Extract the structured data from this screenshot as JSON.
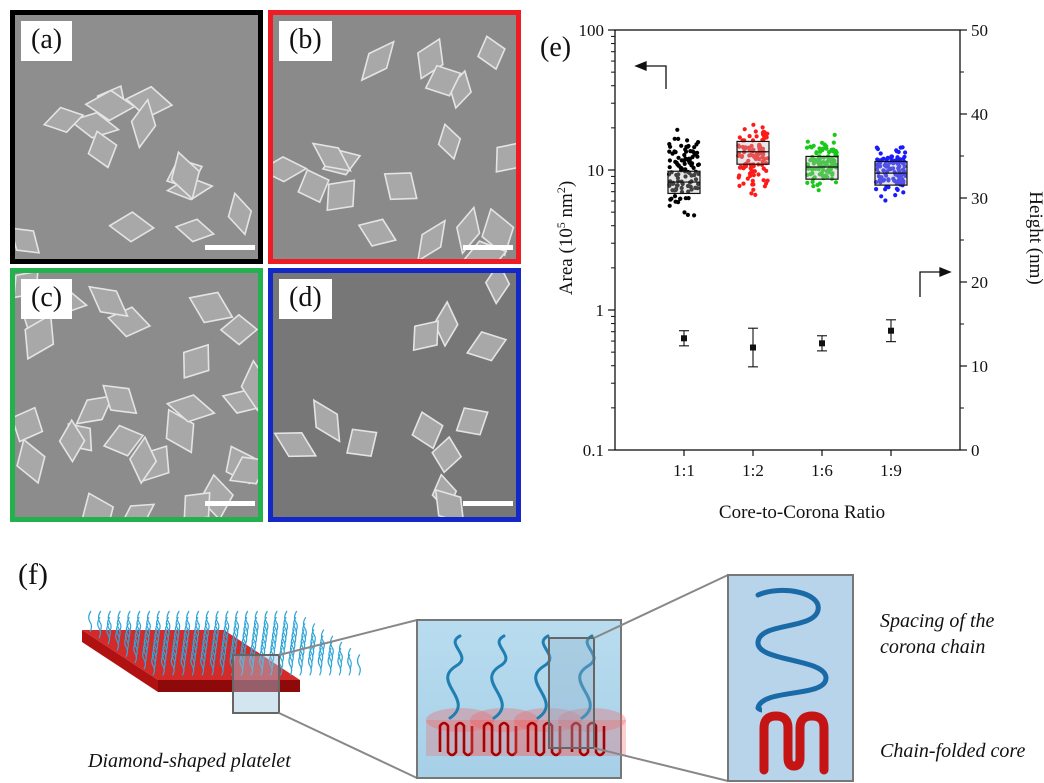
{
  "panels": [
    {
      "label": "(a)",
      "border": "#000000"
    },
    {
      "label": "(b)",
      "border": "#ee1c25"
    },
    {
      "label": "(c)",
      "border": "#22b14c"
    },
    {
      "label": "(d)",
      "border": "#1428c8"
    }
  ],
  "chart_data": {
    "type": "box+scatter",
    "panel_label": "(e)",
    "xlabel": "Core-to-Corona Ratio",
    "categories": [
      "1:1",
      "1:2",
      "1:6",
      "1:9"
    ],
    "colors": [
      "#000000",
      "#ff1a1a",
      "#1ac81a",
      "#1a1aff"
    ],
    "y_left": {
      "label_main": "Area (10",
      "label_sup1": "5",
      "label_mid": " nm",
      "label_sup2": "2",
      "label_end": ")",
      "scale": "log",
      "range": [
        0.1,
        100
      ],
      "ticks": [
        "0.1",
        "1",
        "10",
        "100"
      ]
    },
    "y_right": {
      "label": "Height (nm)",
      "scale": "linear",
      "range": [
        0,
        50
      ],
      "ticks": [
        "0",
        "10",
        "20",
        "30",
        "40",
        "50"
      ]
    },
    "area_boxes": [
      {
        "category": "1:1",
        "q1": 6.8,
        "median": 8.2,
        "q3": 9.8,
        "min": 4.3,
        "max": 22
      },
      {
        "category": "1:2",
        "q1": 11,
        "median": 13.5,
        "q3": 16,
        "min": 6,
        "max": 25
      },
      {
        "category": "1:6",
        "q1": 8.6,
        "median": 10.5,
        "q3": 12.5,
        "min": 6.4,
        "max": 20
      },
      {
        "category": "1:9",
        "q1": 7.8,
        "median": 9.5,
        "q3": 11.5,
        "min": 5.5,
        "max": 18
      }
    ],
    "height_points": [
      {
        "category": "1:1",
        "mean": 13.3,
        "err": 0.9
      },
      {
        "category": "1:2",
        "mean": 12.2,
        "err": 2.3
      },
      {
        "category": "1:6",
        "mean": 12.7,
        "err": 0.9
      },
      {
        "category": "1:9",
        "mean": 14.2,
        "err": 1.3
      }
    ],
    "grid": false
  },
  "schematic": {
    "label": "(f)",
    "caption_platelet": "Diamond-shaped platelet",
    "caption_spacing_line1": "Spacing of the",
    "caption_spacing_line2": "corona chain",
    "caption_core": "Chain-folded core"
  }
}
